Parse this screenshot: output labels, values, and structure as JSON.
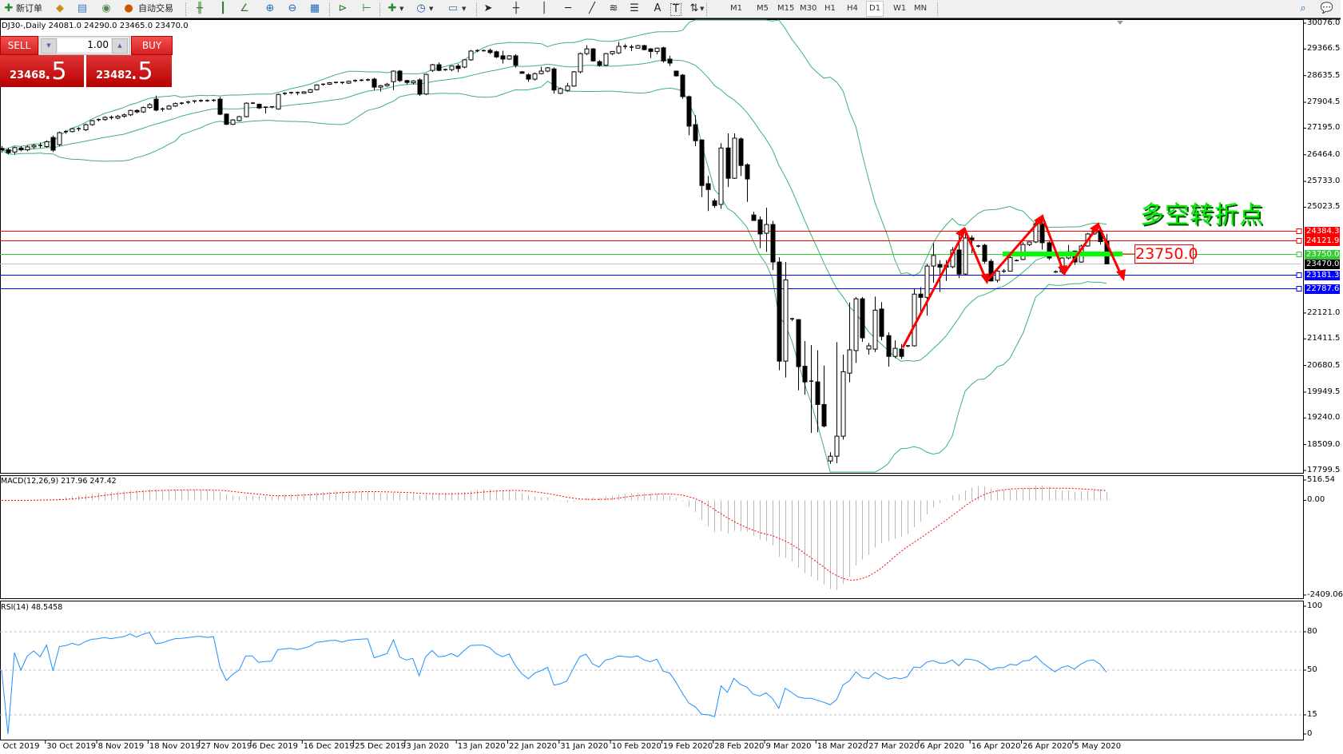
{
  "toolbar": {
    "new_order": "新订单",
    "auto_trading": "自动交易",
    "timeframes": [
      "M1",
      "M5",
      "M15",
      "M30",
      "H1",
      "H4",
      "D1",
      "W1",
      "MN"
    ],
    "active_timeframe": "D1",
    "text_tool": "A"
  },
  "chart_header": "DJ30-,Daily  24081.0 24290.0 23465.0 23470.0",
  "trade_panel": {
    "sell_label": "SELL",
    "buy_label": "BUY",
    "lot": "1.00",
    "sell_price_main": "23468",
    "sell_price_frac": ".5",
    "buy_price_main": "23482",
    "buy_price_frac": ".5"
  },
  "annotation": {
    "text": "多空转折点",
    "price_label": "23750.0",
    "text_color": "#00ee00",
    "arrow_color": "#ff0000"
  },
  "levels": [
    {
      "value": 24384.3,
      "label": "24384.3",
      "color": "#ff0000"
    },
    {
      "value": 24121.9,
      "label": "24121.9",
      "color": "#ff0000"
    },
    {
      "value": 23750.0,
      "label": "23750.0",
      "color": "#33cc33"
    },
    {
      "value": 23470.0,
      "label": "23470.0",
      "color": "#000000",
      "line_color": "#c0c0c0"
    },
    {
      "value": 23181.3,
      "label": "23181.3",
      "color": "#0000ff"
    },
    {
      "value": 22787.6,
      "label": "22787.6",
      "color": "#0000ff"
    }
  ],
  "macd_label": "MACD(12,26,9) 217.96 247.42",
  "rsi_label": "RSI(14) 48.5458",
  "chart_data": {
    "type": "candlestick",
    "symbol": "DJ30-",
    "timeframe": "Daily",
    "ylim": [
      17799.5,
      30076.0
    ],
    "price_ticks": [
      "30076.0",
      "29366.5",
      "28635.5",
      "27904.5",
      "27195.0",
      "26464.0",
      "25733.0",
      "25023.5",
      "22121.0",
      "21411.5",
      "20680.5",
      "19949.5",
      "19240.0",
      "18509.0",
      "17799.5"
    ],
    "price_tick_values": [
      30076.0,
      29366.5,
      28635.5,
      27904.5,
      27195.0,
      26464.0,
      25733.0,
      25023.5,
      22121.0,
      21411.5,
      20680.5,
      19949.5,
      19240.0,
      18509.0,
      17799.5
    ],
    "date_labels": [
      "1 Oct 2019",
      "30 Oct 2019",
      "8 Nov 2019",
      "18 Nov 2019",
      "27 Nov 2019",
      "6 Dec 2019",
      "16 Dec 2019",
      "25 Dec 2019",
      "3 Jan 2020",
      "13 Jan 2020",
      "22 Jan 2020",
      "31 Jan 2020",
      "10 Feb 2020",
      "19 Feb 2020",
      "28 Feb 2020",
      "9 Mar 2020",
      "18 Mar 2020",
      "27 Mar 2020",
      "6 Apr 2020",
      "16 Apr 2020",
      "26 Apr 2020",
      "5 May 2020"
    ],
    "indicators": {
      "bollinger": {
        "period": 20,
        "deviation": 2,
        "color": "#3cb371"
      },
      "macd": {
        "fast": 12,
        "slow": 26,
        "signal": 9,
        "ticks": [
          "516.54",
          "0.00",
          "-2409.06"
        ],
        "range": [
          -2409.06,
          516.54
        ]
      },
      "rsi": {
        "period": 14,
        "ticks": [
          "100",
          "80",
          "50",
          "15",
          "0"
        ],
        "levels": [
          80,
          50,
          15
        ],
        "color": "#1e90ff"
      }
    },
    "ohlc": [
      [
        26640,
        26700,
        26520,
        26600
      ],
      [
        26600,
        26660,
        26480,
        26520
      ],
      [
        26540,
        26690,
        26470,
        26660
      ],
      [
        26650,
        26700,
        26560,
        26600
      ],
      [
        26600,
        26720,
        26560,
        26680
      ],
      [
        26680,
        26760,
        26620,
        26720
      ],
      [
        26720,
        26800,
        26650,
        26690
      ],
      [
        26690,
        26860,
        26660,
        26820
      ],
      [
        26940,
        26990,
        26540,
        26590
      ],
      [
        26740,
        27100,
        26700,
        27070
      ],
      [
        27070,
        27140,
        27040,
        27100
      ],
      [
        27100,
        27200,
        27080,
        27180
      ],
      [
        27180,
        27220,
        27110,
        27150
      ],
      [
        27150,
        27320,
        27120,
        27290
      ],
      [
        27290,
        27420,
        27260,
        27400
      ],
      [
        27400,
        27460,
        27380,
        27430
      ],
      [
        27430,
        27520,
        27400,
        27490
      ],
      [
        27490,
        27540,
        27430,
        27470
      ],
      [
        27470,
        27560,
        27440,
        27520
      ],
      [
        27520,
        27600,
        27480,
        27560
      ],
      [
        27560,
        27700,
        27530,
        27680
      ],
      [
        27680,
        27710,
        27600,
        27640
      ],
      [
        27640,
        27790,
        27610,
        27760
      ],
      [
        27760,
        27880,
        27730,
        27840
      ],
      [
        27990,
        28090,
        27660,
        27690
      ],
      [
        27690,
        27760,
        27650,
        27720
      ],
      [
        27720,
        27830,
        27700,
        27800
      ],
      [
        27800,
        27900,
        27780,
        27870
      ],
      [
        27870,
        27910,
        27840,
        27880
      ],
      [
        27880,
        27940,
        27860,
        27910
      ],
      [
        27910,
        27960,
        27880,
        27940
      ],
      [
        27940,
        27980,
        27910,
        27950
      ],
      [
        27950,
        27980,
        27920,
        27940
      ],
      [
        27940,
        27990,
        27920,
        27960
      ],
      [
        27990,
        28050,
        27550,
        27576
      ],
      [
        27580,
        27600,
        27280,
        27300
      ],
      [
        27300,
        27440,
        27280,
        27420
      ],
      [
        27400,
        27530,
        27380,
        27510
      ],
      [
        27510,
        27900,
        27490,
        27880
      ],
      [
        27880,
        27910,
        27860,
        27880
      ],
      [
        27850,
        27870,
        27720,
        27750
      ],
      [
        27750,
        27790,
        27600,
        27770
      ],
      [
        27770,
        27800,
        27740,
        27780
      ],
      [
        27720,
        28140,
        27700,
        28120
      ],
      [
        28120,
        28180,
        28100,
        28150
      ],
      [
        28150,
        28190,
        28130,
        28170
      ],
      [
        28170,
        28200,
        28100,
        28150
      ],
      [
        28150,
        28210,
        28140,
        28190
      ],
      [
        28180,
        28270,
        28160,
        28250
      ],
      [
        28250,
        28400,
        28230,
        28380
      ],
      [
        28380,
        28420,
        28360,
        28400
      ],
      [
        28400,
        28460,
        28380,
        28440
      ],
      [
        28440,
        28470,
        28420,
        28450
      ],
      [
        28450,
        28470,
        28400,
        28430
      ],
      [
        28430,
        28500,
        28410,
        28480
      ],
      [
        28480,
        28530,
        28460,
        28500
      ],
      [
        28500,
        28540,
        28480,
        28510
      ],
      [
        28510,
        28560,
        28490,
        28520
      ],
      [
        28540,
        28580,
        28240,
        28320
      ],
      [
        28320,
        28380,
        28200,
        28360
      ],
      [
        28360,
        28440,
        28330,
        28400
      ],
      [
        28470,
        28780,
        28240,
        28760
      ],
      [
        28760,
        28790,
        28460,
        28500
      ],
      [
        28500,
        28520,
        28400,
        28450
      ],
      [
        28440,
        28510,
        28400,
        28490
      ],
      [
        28520,
        28560,
        28080,
        28130
      ],
      [
        28130,
        28690,
        28100,
        28670
      ],
      [
        28780,
        28960,
        28740,
        28935
      ],
      [
        28935,
        29000,
        28760,
        28780
      ],
      [
        28780,
        28830,
        28770,
        28800
      ],
      [
        28800,
        28920,
        28760,
        28900
      ],
      [
        28900,
        28960,
        28730,
        28830
      ],
      [
        28870,
        29090,
        28840,
        29070
      ],
      [
        29070,
        29340,
        29040,
        29310
      ],
      [
        29310,
        29360,
        29280,
        29320
      ],
      [
        29320,
        29350,
        29300,
        29320
      ],
      [
        29330,
        29380,
        29230,
        29270
      ],
      [
        29290,
        29320,
        29120,
        29150
      ],
      [
        29180,
        29320,
        28970,
        29090
      ],
      [
        29090,
        29200,
        29070,
        29180
      ],
      [
        29180,
        29220,
        28860,
        28920
      ],
      [
        28740,
        28760,
        28690,
        28700
      ],
      [
        28660,
        28700,
        28470,
        28540
      ],
      [
        28540,
        28720,
        28500,
        28690
      ],
      [
        28690,
        28880,
        28670,
        28760
      ],
      [
        28760,
        28870,
        28730,
        28850
      ],
      [
        28820,
        28860,
        28140,
        28240
      ],
      [
        28150,
        28310,
        28130,
        28280
      ],
      [
        28230,
        28440,
        28200,
        28350
      ],
      [
        28350,
        28760,
        28330,
        28740
      ],
      [
        28740,
        29270,
        28700,
        29240
      ],
      [
        29240,
        29470,
        29200,
        29370
      ],
      [
        29370,
        29390,
        29020,
        29040
      ],
      [
        29020,
        29060,
        28880,
        28920
      ],
      [
        28920,
        29260,
        28900,
        29240
      ],
      [
        29240,
        29310,
        29200,
        29300
      ],
      [
        29260,
        29560,
        29230,
        29440
      ],
      [
        29440,
        29500,
        29360,
        29420
      ],
      [
        29420,
        29480,
        29310,
        29400
      ],
      [
        29390,
        29480,
        29380,
        29460
      ],
      [
        29460,
        29480,
        29330,
        29350
      ],
      [
        29370,
        29390,
        29120,
        29300
      ],
      [
        29300,
        29410,
        29220,
        29390
      ],
      [
        29400,
        29430,
        28990,
        29040
      ],
      [
        29090,
        29180,
        28900,
        28980
      ],
      [
        28760,
        28770,
        28610,
        28630
      ],
      [
        28650,
        28680,
        28000,
        28060
      ],
      [
        28060,
        28090,
        27000,
        27250
      ],
      [
        27290,
        27550,
        26700,
        26850
      ],
      [
        26870,
        26890,
        25300,
        25620
      ],
      [
        25670,
        25880,
        24920,
        25510
      ],
      [
        25200,
        25260,
        25010,
        25070
      ],
      [
        25100,
        26780,
        24980,
        26650
      ],
      [
        26650,
        27050,
        25580,
        25820
      ],
      [
        25820,
        27050,
        25800,
        26920
      ],
      [
        26900,
        26940,
        25880,
        26170
      ],
      [
        26190,
        26230,
        25170,
        25800
      ],
      [
        24810,
        24900,
        24650,
        24660
      ],
      [
        24680,
        24770,
        23900,
        24290
      ],
      [
        24310,
        25010,
        23800,
        24550
      ],
      [
        24550,
        24650,
        23300,
        23520
      ],
      [
        23520,
        23650,
        20550,
        20800
      ],
      [
        20800,
        23520,
        20350,
        23030
      ],
      [
        21960,
        21990,
        21900,
        21940
      ],
      [
        21940,
        21940,
        20000,
        20650
      ],
      [
        20660,
        21350,
        19880,
        20230
      ],
      [
        20250,
        21240,
        18830,
        20230
      ],
      [
        20230,
        21100,
        18850,
        19610
      ],
      [
        19610,
        20680,
        18980,
        19020
      ],
      [
        18060,
        18300,
        17980,
        18190
      ],
      [
        18190,
        21320,
        18000,
        18740
      ],
      [
        18740,
        20980,
        18650,
        20510
      ],
      [
        20470,
        22410,
        20220,
        21110
      ],
      [
        21090,
        22560,
        20750,
        22510
      ],
      [
        22510,
        22560,
        21330,
        21440
      ],
      [
        21130,
        21300,
        20980,
        21220
      ],
      [
        21130,
        22570,
        21050,
        22200
      ],
      [
        22230,
        22420,
        21370,
        21480
      ],
      [
        21500,
        21590,
        20650,
        20930
      ],
      [
        20930,
        21370,
        20880,
        21150
      ],
      [
        21130,
        21270,
        20860,
        20930
      ],
      [
        21200,
        21240,
        21180,
        21220
      ],
      [
        21220,
        22800,
        21200,
        22640
      ],
      [
        22640,
        22830,
        22160,
        22550
      ],
      [
        22550,
        23470,
        22050,
        23410
      ],
      [
        23410,
        24030,
        22950,
        23700
      ],
      [
        23450,
        23570,
        22700,
        23380
      ],
      [
        23430,
        23570,
        23000,
        23380
      ],
      [
        23390,
        23930,
        23350,
        23850
      ],
      [
        23850,
        24270,
        23080,
        23190
      ],
      [
        23190,
        24340,
        23160,
        24180
      ],
      [
        24180,
        24250,
        23760,
        24130
      ],
      [
        23960,
        23990,
        23920,
        23960
      ],
      [
        23980,
        24020,
        23480,
        23540
      ],
      [
        23540,
        23600,
        22990,
        23000
      ],
      [
        23020,
        23300,
        22960,
        23270
      ],
      [
        23250,
        23330,
        23220,
        23270
      ],
      [
        23270,
        23700,
        23260,
        23640
      ],
      [
        23560,
        23590,
        23540,
        23560
      ],
      [
        23590,
        24060,
        23570,
        24000
      ],
      [
        24000,
        24080,
        23960,
        24070
      ],
      [
        24070,
        24660,
        24040,
        24570
      ],
      [
        24570,
        24660,
        23860,
        24050
      ],
      [
        24050,
        24090,
        23580,
        23630
      ],
      [
        23250,
        23290,
        23220,
        23250
      ],
      [
        23250,
        23650,
        23200,
        23630
      ],
      [
        23630,
        23990,
        23590,
        23800
      ],
      [
        23820,
        23840,
        23440,
        23520
      ],
      [
        23520,
        24000,
        23500,
        23960
      ],
      [
        23960,
        24320,
        23940,
        24290
      ],
      [
        24290,
        24400,
        24270,
        24380
      ],
      [
        24380,
        24430,
        24000,
        24080
      ],
      [
        24081,
        24290,
        23465,
        23470
      ]
    ]
  }
}
